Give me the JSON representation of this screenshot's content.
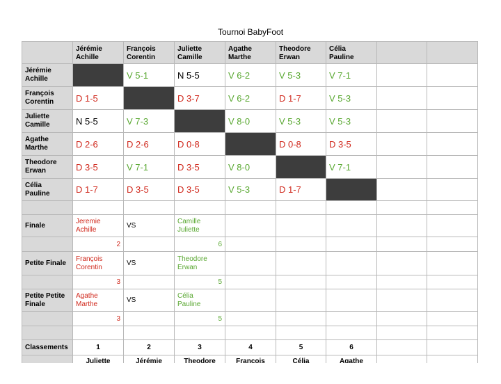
{
  "header": {
    "title": "Tournoi BabyFoot"
  },
  "table": {
    "columns": [
      "Jérémie\nAchille",
      "François\nCorentin",
      "Juliette\nCamille",
      "Agathe\nMarthe",
      "Theodore\nErwan",
      "Célia\nPauline"
    ],
    "rows": [
      {
        "label": "Jérémie\nAchille",
        "cells": [
          null,
          "V 5-1",
          "N 5-5",
          "V 6-2",
          "V 5-3",
          "V 7-1"
        ]
      },
      {
        "label": "François\nCorentin",
        "cells": [
          "D 1-5",
          null,
          "D 3-7",
          "V 6-2",
          "D 1-7",
          "V 5-3"
        ]
      },
      {
        "label": "Juliette\nCamille",
        "cells": [
          "N 5-5",
          "V 7-3",
          null,
          "V 8-0",
          "V 5-3",
          "V 5-3"
        ]
      },
      {
        "label": "Agathe\nMarthe",
        "cells": [
          "D 2-6",
          "D 2-6",
          "D 0-8",
          null,
          "D 0-8",
          "D 3-5"
        ]
      },
      {
        "label": "Theodore\nErwan",
        "cells": [
          "D 3-5",
          "V 7-1",
          "D 3-5",
          "V 8-0",
          null,
          "V 7-1"
        ]
      },
      {
        "label": "Célia\nPauline",
        "cells": [
          "D 1-7",
          "D 3-5",
          "D 3-5",
          "V 5-3",
          "D 1-7",
          null
        ]
      }
    ]
  },
  "finals": [
    {
      "label": "Finale",
      "team1": "Jeremie\nAchille",
      "vs": "VS",
      "team2": "Camille\nJuliette",
      "score1": 2,
      "score2": 6
    },
    {
      "label": "Petite Finale",
      "team1": "François\nCorentin",
      "vs": "VS",
      "team2": "Theodore\nErwan",
      "score1": 3,
      "score2": 5
    },
    {
      "label": "Petite Petite\nFinale",
      "team1": "Agathe\nMarthe",
      "vs": "VS",
      "team2": "Célia\nPauline",
      "score1": 3,
      "score2": 5
    }
  ],
  "ranking": {
    "label": "Classements",
    "ranks": [
      1,
      2,
      3,
      4,
      5,
      6
    ],
    "names": [
      "Juliette",
      "Jérémie",
      "Theodore",
      "François",
      "Célia",
      "Agathe"
    ]
  }
}
